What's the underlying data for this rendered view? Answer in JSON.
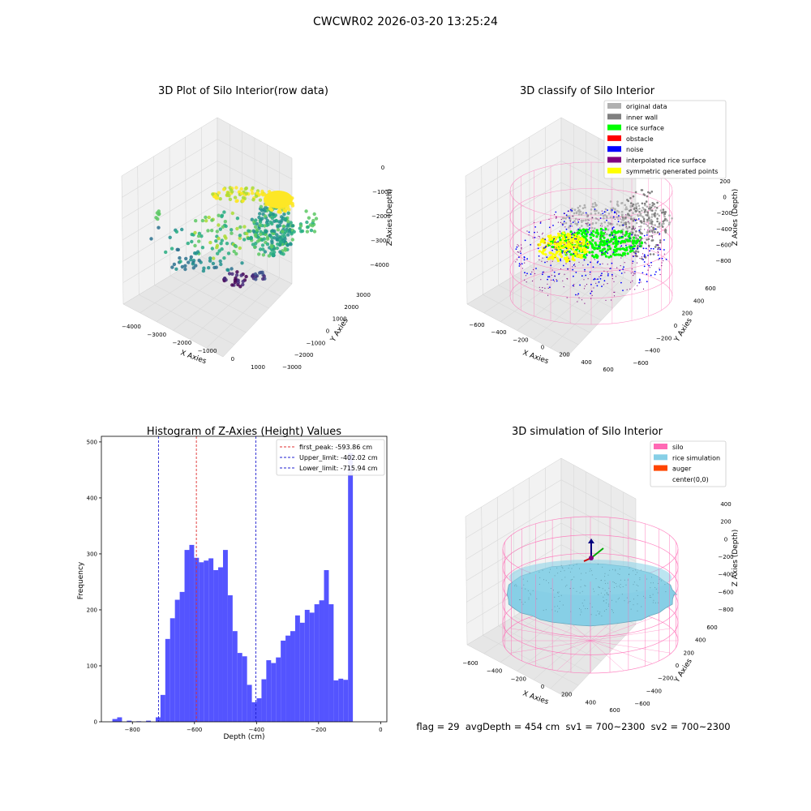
{
  "suptitle": "CWCWR02 2026-03-20 13:25:24",
  "footer_text": "flag = 29  avgDepth = 454 cm  sv1 = 700~2300  sv2 = 700~2300",
  "colors": {
    "hist_bar": "#4b4bff",
    "peak_line": "#e03030",
    "limit_line": "#2020d0",
    "silo": "#ff69b4",
    "rice_sim": "#87cfe6",
    "auger": "#ff4500",
    "original": "#b0b0b0",
    "inner_wall": "#808080",
    "rice_surface": "#00ff00",
    "obstacle": "#ff0000",
    "noise": "#0000ff",
    "interpolated": "#800080",
    "symmetric": "#ffff00"
  },
  "chart_data": [
    {
      "type": "scatter",
      "subtype": "3d",
      "title": "3D Plot of Silo Interior(row data)",
      "xlabel": "X Axies",
      "ylabel": "Y Axies",
      "zlabel": "Z Axies (Depth)",
      "x_ticks": [
        "−4000",
        "−3000",
        "−2000",
        "−1000",
        "0",
        "1000"
      ],
      "y_ticks": [
        "−3000",
        "−2000",
        "−1000",
        "0",
        "1000",
        "2000",
        "3000"
      ],
      "z_ticks": [
        "0",
        "−1000",
        "−2000",
        "−3000",
        "−4000"
      ],
      "colormap": "viridis"
    },
    {
      "type": "scatter",
      "subtype": "3d",
      "title": "3D classify of Silo Interior",
      "xlabel": "X Axies",
      "ylabel": "Y Axies",
      "zlabel": "Z Axies (Depth)",
      "x_ticks": [
        "−600",
        "−400",
        "−200",
        "0",
        "200",
        "400",
        "600"
      ],
      "y_ticks": [
        "−600",
        "−400",
        "−200",
        "0",
        "200",
        "400",
        "600"
      ],
      "z_ticks": [
        "200",
        "0",
        "−200",
        "−400",
        "−600",
        "−800"
      ],
      "legend": [
        "original data",
        "inner wall",
        "rice surface",
        "obstacle",
        "noise",
        "interpolated rice surface",
        "symmetric generated points"
      ],
      "legend_position": "top-right"
    },
    {
      "type": "bar",
      "title": "Histogram of Z-Axies (Height) Values",
      "xlabel": "Depth (cm)",
      "ylabel": "Frequency",
      "xlim": [
        -900,
        20
      ],
      "ylim": [
        0,
        510
      ],
      "x_ticks": [
        -800,
        -600,
        -400,
        -200,
        0
      ],
      "y_ticks": [
        0,
        100,
        200,
        300,
        400,
        500
      ],
      "bin_start": -880,
      "bin_width": 15.5,
      "values": [
        0,
        5,
        8,
        0,
        2,
        0,
        1,
        0,
        2,
        0,
        8,
        48,
        148,
        185,
        218,
        232,
        307,
        316,
        293,
        285,
        288,
        292,
        271,
        276,
        307,
        226,
        162,
        123,
        117,
        66,
        35,
        42,
        76,
        110,
        105,
        115,
        145,
        154,
        162,
        190,
        177,
        200,
        195,
        210,
        217,
        271,
        210,
        74,
        77,
        75,
        480
      ],
      "vlines": [
        {
          "label": "first_peak: -593.86 cm",
          "x": -593.86,
          "color": "red"
        },
        {
          "label": "Upper_limit: -402.02 cm",
          "x": -402.02,
          "color": "blue"
        },
        {
          "label": "Lower_limit: -715.94 cm",
          "x": -715.94,
          "color": "blue"
        }
      ],
      "legend_position": "top-right"
    },
    {
      "type": "scatter",
      "subtype": "3d-surface",
      "title": "3D simulation of Silo Interior",
      "xlabel": "X Axies",
      "ylabel": "Y Axies",
      "zlabel": "Z Axies (Depth)",
      "x_ticks": [
        "−600",
        "−400",
        "−200",
        "0",
        "200",
        "400",
        "600"
      ],
      "y_ticks": [
        "−600",
        "−400",
        "−200",
        "0",
        "200",
        "400",
        "600"
      ],
      "z_ticks": [
        "400",
        "200",
        "0",
        "−200",
        "−400",
        "−600",
        "−800"
      ],
      "legend": [
        "silo",
        "rice simulation",
        "auger",
        "center(0,0)"
      ],
      "legend_position": "top-right"
    }
  ]
}
